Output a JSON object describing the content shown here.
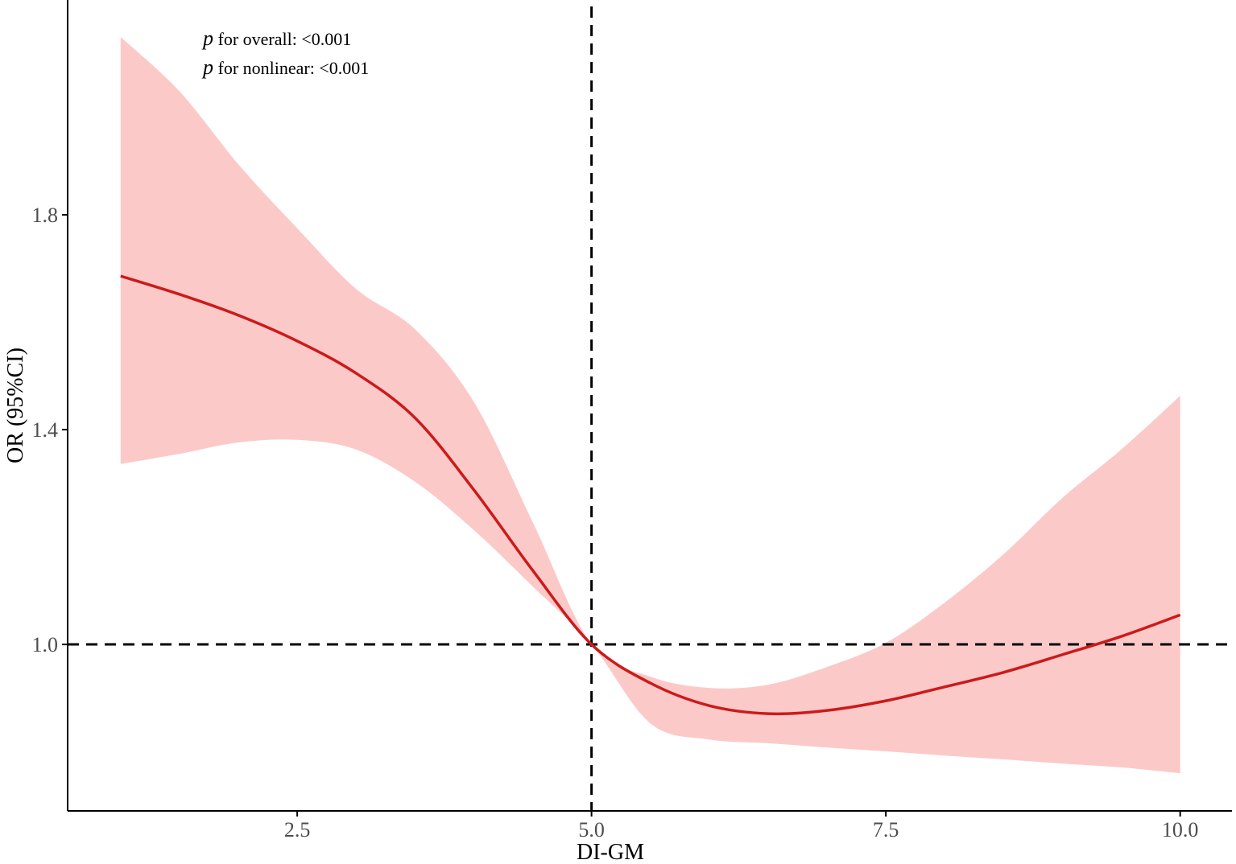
{
  "chart_data": {
    "type": "line",
    "title": "",
    "xlabel": "DI-GM",
    "ylabel": "OR (95%CI)",
    "xlim": [
      0.55,
      10.44
    ],
    "ylim": [
      0.69,
      2.2
    ],
    "xticks": [
      2.5,
      5.0,
      7.5,
      10.0
    ],
    "xtick_labels": [
      "2.5",
      "5.0",
      "7.5",
      "10.0"
    ],
    "yticks": [
      1.0,
      1.4,
      1.8
    ],
    "ytick_labels": [
      "1.0",
      "1.4",
      "1.8"
    ],
    "grid": false,
    "annotations": [
      {
        "italic": "p",
        "text": " for overall: <0.001"
      },
      {
        "italic": "p",
        "text": " for nonlinear: <0.001"
      }
    ],
    "reference_lines": {
      "vertical_x": 5.0,
      "horizontal_y": 1.0,
      "style": "dashed",
      "color": "#000000"
    },
    "colors": {
      "line": "#cc1a1a",
      "ribbon": "#fcc9c9"
    },
    "x": [
      1,
      1.5,
      2,
      2.5,
      3,
      3.5,
      4,
      4.5,
      5,
      5.5,
      6,
      6.5,
      7,
      7.5,
      8,
      8.5,
      9,
      9.5,
      10
    ],
    "series": [
      {
        "role": "estimate",
        "values": [
          1.686,
          1.652,
          1.613,
          1.565,
          1.505,
          1.422,
          1.288,
          1.138,
          1.0,
          0.928,
          0.886,
          0.871,
          0.877,
          0.895,
          0.921,
          0.948,
          0.981,
          1.015,
          1.055
        ]
      },
      {
        "role": "upper_95ci",
        "values": [
          2.131,
          2.03,
          1.894,
          1.775,
          1.662,
          1.587,
          1.452,
          1.228,
          1.0,
          0.94,
          0.919,
          0.925,
          0.958,
          1.003,
          1.078,
          1.168,
          1.273,
          1.363,
          1.463
        ]
      },
      {
        "role": "lower_95ci",
        "values": [
          1.336,
          1.355,
          1.376,
          1.381,
          1.363,
          1.303,
          1.213,
          1.108,
          1.0,
          0.853,
          0.823,
          0.816,
          0.808,
          0.801,
          0.793,
          0.786,
          0.778,
          0.771,
          0.76
        ]
      }
    ]
  }
}
